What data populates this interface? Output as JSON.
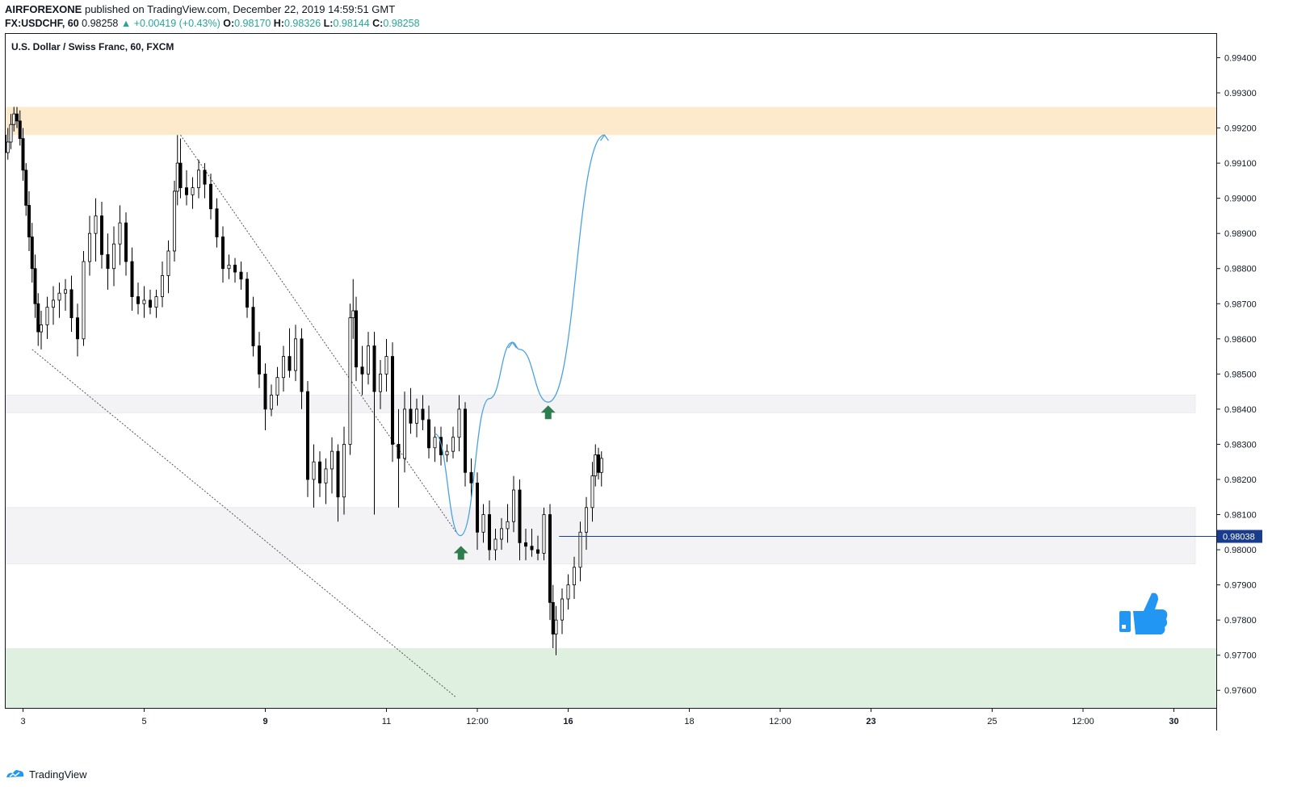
{
  "header": {
    "publisher": "AIRFOREXONE",
    "published_text": "published on TradingView.com, December 22, 2019 14:59:51 GMT",
    "symbol": "FX:USDCHF, 60",
    "last": "0.98258",
    "change": "+0.00419 (+0.43%)",
    "o_label": "O:",
    "o": "0.98170",
    "h_label": "H:",
    "h": "0.98326",
    "l_label": "L:",
    "l": "0.98144",
    "c_label": "C:",
    "c": "0.98258"
  },
  "footer": {
    "brand": "TradingView"
  },
  "colors": {
    "candle": "#000000",
    "resistance_zone": "#fde9cc",
    "support_zone": "#dff0e0",
    "grey_zone": "#f3f3f6",
    "projection": "#4aa3e0",
    "arrow": "#2e7d4f",
    "price_line": "#1a3c8c",
    "axis_text": "#131722"
  },
  "chart_data": {
    "type": "candlestick",
    "title": "U.S. Dollar / Swiss Franc, 60, FXCM",
    "ylim": [
      0.9755,
      0.9947
    ],
    "y_ticks": [
      "0.99400",
      "0.99300",
      "0.99200",
      "0.99100",
      "0.99000",
      "0.98900",
      "0.98800",
      "0.98700",
      "0.98600",
      "0.98500",
      "0.98400",
      "0.98300",
      "0.98200",
      "0.98100",
      "0.98000",
      "0.97900",
      "0.97800",
      "0.97700",
      "0.97600"
    ],
    "x_ticks": [
      "3",
      "5",
      "9",
      "11",
      "12:00",
      "16",
      "18",
      "12:00",
      "23",
      "25",
      "12:00",
      "30"
    ],
    "x_tick_positions": [
      0.3,
      2.3,
      4.3,
      6.3,
      7.8,
      9.3,
      11.3,
      12.8,
      14.3,
      16.3,
      17.8,
      19.3
    ],
    "xlim": [
      0,
      20
    ],
    "current_price": "0.98038",
    "zones": [
      {
        "name": "resistance",
        "from": 0.9918,
        "to": 0.9926
      },
      {
        "name": "mid-grey",
        "from": 0.9839,
        "to": 0.9844
      },
      {
        "name": "support-grey",
        "from": 0.9796,
        "to": 0.9812
      },
      {
        "name": "demand",
        "from": 0.9755,
        "to": 0.9772
      }
    ],
    "candles_ohlc": [
      [
        0,
        0.9918,
        0.9922,
        0.991,
        0.9913
      ],
      [
        0.05,
        0.9913,
        0.992,
        0.9911,
        0.9916
      ],
      [
        0.1,
        0.9916,
        0.9924,
        0.9914,
        0.9921
      ],
      [
        0.15,
        0.9921,
        0.9926,
        0.9919,
        0.9924
      ],
      [
        0.2,
        0.9924,
        0.9926,
        0.992,
        0.9922
      ],
      [
        0.25,
        0.9922,
        0.9925,
        0.9915,
        0.9917
      ],
      [
        0.3,
        0.9917,
        0.992,
        0.9905,
        0.9908
      ],
      [
        0.35,
        0.9908,
        0.991,
        0.9895,
        0.9898
      ],
      [
        0.4,
        0.9898,
        0.9902,
        0.9885,
        0.9889
      ],
      [
        0.45,
        0.9889,
        0.9893,
        0.9876,
        0.988
      ],
      [
        0.5,
        0.988,
        0.9884,
        0.9866,
        0.987
      ],
      [
        0.55,
        0.987,
        0.9873,
        0.9858,
        0.9862
      ],
      [
        0.6,
        0.9862,
        0.9868,
        0.9857,
        0.9864
      ],
      [
        0.7,
        0.9864,
        0.9872,
        0.986,
        0.9869
      ],
      [
        0.8,
        0.9869,
        0.9875,
        0.9864,
        0.9871
      ],
      [
        0.9,
        0.9871,
        0.9876,
        0.9866,
        0.9873
      ],
      [
        1.0,
        0.9873,
        0.9877,
        0.9868,
        0.9874
      ],
      [
        1.1,
        0.9874,
        0.9878,
        0.9862,
        0.9866
      ],
      [
        1.2,
        0.9866,
        0.987,
        0.9855,
        0.986
      ],
      [
        1.3,
        0.986,
        0.9885,
        0.9858,
        0.9882
      ],
      [
        1.4,
        0.9882,
        0.9895,
        0.9878,
        0.989
      ],
      [
        1.5,
        0.989,
        0.99,
        0.9882,
        0.9895
      ],
      [
        1.6,
        0.9895,
        0.9899,
        0.988,
        0.9884
      ],
      [
        1.7,
        0.9884,
        0.989,
        0.9874,
        0.988
      ],
      [
        1.8,
        0.988,
        0.9892,
        0.9875,
        0.9887
      ],
      [
        1.9,
        0.9887,
        0.9898,
        0.9881,
        0.9893
      ],
      [
        2.0,
        0.9893,
        0.9896,
        0.9878,
        0.9882
      ],
      [
        2.1,
        0.9882,
        0.9886,
        0.9868,
        0.9872
      ],
      [
        2.2,
        0.9872,
        0.9876,
        0.9867,
        0.987
      ],
      [
        2.3,
        0.987,
        0.9875,
        0.9866,
        0.9871
      ],
      [
        2.4,
        0.9871,
        0.9874,
        0.9867,
        0.9869
      ],
      [
        2.5,
        0.9869,
        0.9874,
        0.9866,
        0.9872
      ],
      [
        2.6,
        0.9872,
        0.9882,
        0.9869,
        0.9878
      ],
      [
        2.7,
        0.9878,
        0.9888,
        0.9873,
        0.9885
      ],
      [
        2.8,
        0.9885,
        0.9905,
        0.9882,
        0.9902
      ],
      [
        2.85,
        0.9902,
        0.9918,
        0.9898,
        0.991
      ],
      [
        2.9,
        0.991,
        0.9917,
        0.99,
        0.9903
      ],
      [
        3.0,
        0.9903,
        0.9908,
        0.9898,
        0.9901
      ],
      [
        3.1,
        0.9901,
        0.9906,
        0.9897,
        0.9903
      ],
      [
        3.2,
        0.9903,
        0.9911,
        0.99,
        0.9908
      ],
      [
        3.3,
        0.9908,
        0.991,
        0.99,
        0.9904
      ],
      [
        3.4,
        0.9904,
        0.9907,
        0.9894,
        0.9897
      ],
      [
        3.5,
        0.9897,
        0.99,
        0.9886,
        0.9889
      ],
      [
        3.6,
        0.9889,
        0.9892,
        0.9876,
        0.988
      ],
      [
        3.7,
        0.988,
        0.9884,
        0.9877,
        0.9881
      ],
      [
        3.8,
        0.9881,
        0.9883,
        0.9876,
        0.9879
      ],
      [
        3.9,
        0.9879,
        0.9882,
        0.9874,
        0.9877
      ],
      [
        4.0,
        0.9877,
        0.9879,
        0.9866,
        0.9869
      ],
      [
        4.1,
        0.9869,
        0.9872,
        0.9855,
        0.9858
      ],
      [
        4.2,
        0.9858,
        0.9862,
        0.9846,
        0.985
      ],
      [
        4.3,
        0.985,
        0.9853,
        0.9834,
        0.984
      ],
      [
        4.4,
        0.984,
        0.9847,
        0.9838,
        0.9844
      ],
      [
        4.5,
        0.9844,
        0.9852,
        0.9841,
        0.9849
      ],
      [
        4.6,
        0.9849,
        0.9858,
        0.9845,
        0.9855
      ],
      [
        4.7,
        0.9855,
        0.9863,
        0.9849,
        0.9851
      ],
      [
        4.8,
        0.9851,
        0.9864,
        0.9848,
        0.986
      ],
      [
        4.9,
        0.986,
        0.9863,
        0.984,
        0.9845
      ],
      [
        5.0,
        0.9845,
        0.9848,
        0.9815,
        0.982
      ],
      [
        5.1,
        0.982,
        0.983,
        0.9812,
        0.9825
      ],
      [
        5.2,
        0.9825,
        0.9828,
        0.9815,
        0.9819
      ],
      [
        5.3,
        0.9819,
        0.9826,
        0.9813,
        0.9823
      ],
      [
        5.4,
        0.9823,
        0.9832,
        0.9816,
        0.9828
      ],
      [
        5.5,
        0.9828,
        0.983,
        0.9808,
        0.9815
      ],
      [
        5.6,
        0.9815,
        0.9835,
        0.981,
        0.983
      ],
      [
        5.7,
        0.983,
        0.987,
        0.9827,
        0.9866
      ],
      [
        5.75,
        0.9866,
        0.9877,
        0.986,
        0.9868
      ],
      [
        5.8,
        0.9868,
        0.9872,
        0.9848,
        0.9852
      ],
      [
        5.9,
        0.9852,
        0.9858,
        0.9844,
        0.985
      ],
      [
        6.0,
        0.985,
        0.9862,
        0.9847,
        0.9858
      ],
      [
        6.1,
        0.9858,
        0.9862,
        0.981,
        0.9845
      ],
      [
        6.2,
        0.9845,
        0.9854,
        0.984,
        0.985
      ],
      [
        6.3,
        0.985,
        0.986,
        0.9845,
        0.9855
      ],
      [
        6.4,
        0.9855,
        0.9859,
        0.9825,
        0.983
      ],
      [
        6.5,
        0.983,
        0.984,
        0.9812,
        0.9826
      ],
      [
        6.6,
        0.9826,
        0.9845,
        0.9822,
        0.984
      ],
      [
        6.7,
        0.984,
        0.9846,
        0.9833,
        0.9836
      ],
      [
        6.8,
        0.9836,
        0.9843,
        0.9832,
        0.984
      ],
      [
        6.9,
        0.984,
        0.9844,
        0.9834,
        0.9837
      ],
      [
        7.0,
        0.9837,
        0.9841,
        0.9826,
        0.9829
      ],
      [
        7.1,
        0.9829,
        0.9835,
        0.9825,
        0.9832
      ],
      [
        7.2,
        0.9832,
        0.9835,
        0.9824,
        0.9827
      ],
      [
        7.3,
        0.9827,
        0.983,
        0.9825,
        0.9828
      ],
      [
        7.4,
        0.9828,
        0.9835,
        0.9826,
        0.9832
      ],
      [
        7.5,
        0.9832,
        0.9844,
        0.9828,
        0.984
      ],
      [
        7.6,
        0.984,
        0.9842,
        0.9818,
        0.9822
      ],
      [
        7.7,
        0.9822,
        0.9826,
        0.9815,
        0.9819
      ],
      [
        7.8,
        0.9819,
        0.9822,
        0.98,
        0.9805
      ],
      [
        7.9,
        0.9805,
        0.9813,
        0.9802,
        0.981
      ],
      [
        8.0,
        0.981,
        0.9814,
        0.9797,
        0.98
      ],
      [
        8.1,
        0.98,
        0.9806,
        0.9797,
        0.9803
      ],
      [
        8.2,
        0.9803,
        0.9809,
        0.98,
        0.9806
      ],
      [
        8.3,
        0.9806,
        0.9813,
        0.9802,
        0.9808
      ],
      [
        8.4,
        0.9808,
        0.9821,
        0.9805,
        0.9817
      ],
      [
        8.5,
        0.9817,
        0.982,
        0.9797,
        0.9802
      ],
      [
        8.6,
        0.9802,
        0.9806,
        0.9797,
        0.9801
      ],
      [
        8.7,
        0.9801,
        0.9806,
        0.9798,
        0.98
      ],
      [
        8.8,
        0.98,
        0.9804,
        0.9797,
        0.9799
      ],
      [
        8.9,
        0.9799,
        0.9812,
        0.9797,
        0.981
      ],
      [
        9.0,
        0.981,
        0.9813,
        0.978,
        0.9785
      ],
      [
        9.05,
        0.9785,
        0.979,
        0.9772,
        0.9776
      ],
      [
        9.1,
        0.9776,
        0.9784,
        0.977,
        0.978
      ],
      [
        9.2,
        0.978,
        0.9789,
        0.9776,
        0.9786
      ],
      [
        9.3,
        0.9786,
        0.9793,
        0.9783,
        0.979
      ],
      [
        9.4,
        0.979,
        0.9798,
        0.9786,
        0.9795
      ],
      [
        9.5,
        0.9795,
        0.9808,
        0.9791,
        0.9805
      ],
      [
        9.6,
        0.9805,
        0.9815,
        0.98,
        0.9812
      ],
      [
        9.7,
        0.9812,
        0.9825,
        0.9808,
        0.9821
      ],
      [
        9.75,
        0.9821,
        0.983,
        0.9818,
        0.9827
      ],
      [
        9.8,
        0.9827,
        0.9829,
        0.982,
        0.9822
      ],
      [
        9.85,
        0.9822,
        0.9828,
        0.9818,
        0.9826
      ]
    ],
    "trend_lines": [
      {
        "name": "upper",
        "points": [
          [
            2.9,
            0.9918
          ],
          [
            7.45,
            0.9805
          ]
        ]
      },
      {
        "name": "lower",
        "points": [
          [
            0.45,
            0.9857
          ],
          [
            7.45,
            0.9758
          ]
        ]
      }
    ],
    "projection_path": [
      [
        7.1,
        0.9833
      ],
      [
        7.52,
        0.9804
      ],
      [
        8.0,
        0.9843
      ],
      [
        8.38,
        0.9859
      ],
      [
        8.5,
        0.9857
      ],
      [
        8.97,
        0.9842
      ],
      [
        9.9,
        0.9918
      ]
    ],
    "arrows": [
      [
        7.53,
        0.9799
      ],
      [
        8.97,
        0.9839
      ]
    ]
  }
}
